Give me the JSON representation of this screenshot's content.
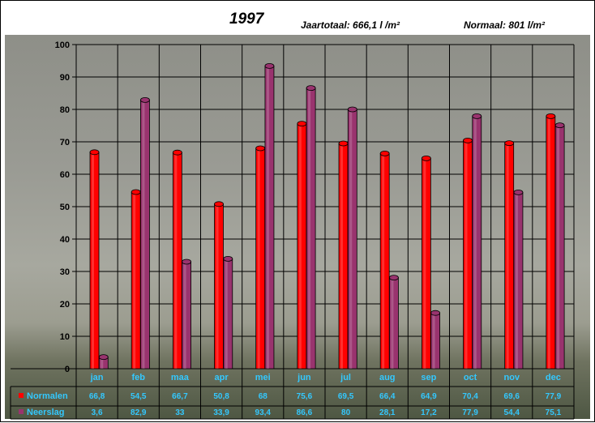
{
  "header": {
    "title": "1997",
    "total_label": "Jaartotaal: 666,1 l /m²",
    "normal_label": "Normaal: 801 l/m²"
  },
  "colors": {
    "normalen": "#ff0000",
    "neerslag": "#99336e",
    "labels": "#33c8ff"
  },
  "chart_data": {
    "type": "bar",
    "categories": [
      "jan",
      "feb",
      "maa",
      "apr",
      "mei",
      "jun",
      "jul",
      "aug",
      "sep",
      "oct",
      "nov",
      "dec"
    ],
    "series": [
      {
        "name": "Normalen",
        "values": [
          66.8,
          54.5,
          66.7,
          50.8,
          68,
          75.6,
          69.5,
          66.4,
          64.9,
          70.4,
          69.6,
          77.9
        ],
        "labels": [
          "66,8",
          "54,5",
          "66,7",
          "50,8",
          "68",
          "75,6",
          "69,5",
          "66,4",
          "64,9",
          "70,4",
          "69,6",
          "77,9"
        ]
      },
      {
        "name": "Neerslag",
        "values": [
          3.6,
          82.9,
          33,
          33.9,
          93.4,
          86.6,
          80,
          28.1,
          17.2,
          77.9,
          54.4,
          75.1
        ],
        "labels": [
          "3,6",
          "82,9",
          "33",
          "33,9",
          "93,4",
          "86,6",
          "80",
          "28,1",
          "17,2",
          "77,9",
          "54,4",
          "75,1"
        ]
      }
    ],
    "yticks": [
      "0",
      "10",
      "20",
      "30",
      "40",
      "50",
      "60",
      "70",
      "80",
      "90",
      "100"
    ],
    "ylim": [
      0,
      100
    ],
    "grid": true,
    "legend": "data-table-left"
  }
}
